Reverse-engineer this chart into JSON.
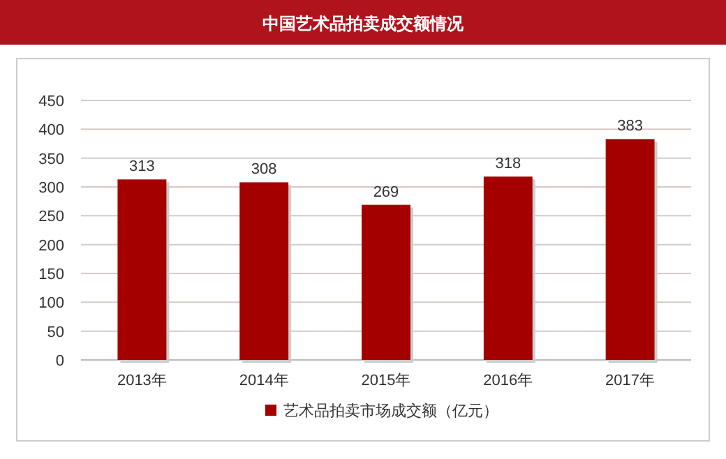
{
  "chart_data": {
    "type": "bar",
    "title": "中国艺术品拍卖成交额情况",
    "categories": [
      "2013年",
      "2014年",
      "2015年",
      "2016年",
      "2017年"
    ],
    "series": [
      {
        "name": "艺术品拍卖市场成交额（亿元）",
        "color": "#a50000",
        "values": [
          313,
          308,
          269,
          318,
          383
        ]
      }
    ],
    "ylim": [
      0,
      450
    ],
    "yticks": [
      0,
      50,
      100,
      150,
      200,
      250,
      300,
      350,
      400,
      450
    ],
    "grid": "y",
    "legend": "bottom",
    "data_labels": true
  }
}
